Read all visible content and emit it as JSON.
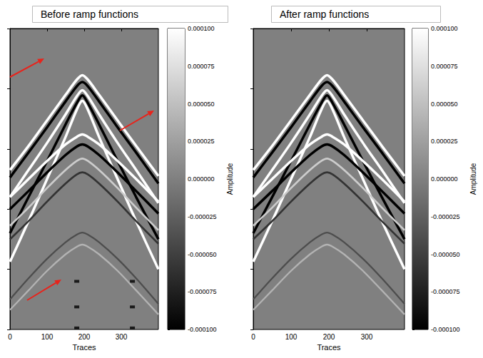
{
  "chart_data": [
    {
      "type": "line",
      "title": "Before ramp functions",
      "xlabel": "Traces",
      "xlim": [
        0,
        400
      ],
      "xticks": [
        0,
        100,
        200,
        300
      ],
      "ylim": [
        0,
        1000
      ],
      "yticks": [
        0,
        200,
        400,
        600,
        800,
        1000
      ],
      "tick_labels": "x",
      "colorbar": {
        "label": "Amplitude",
        "range": [
          -0.0001,
          0.0001
        ],
        "ticks": [
          {
            "value": 0.0001,
            "label": "0.000100"
          },
          {
            "value": 7.5e-05,
            "label": "0.000075"
          },
          {
            "value": 5e-05,
            "label": "0.000050"
          },
          {
            "value": 2.5e-05,
            "label": "0.000025"
          },
          {
            "value": 0,
            "label": "0.000000"
          },
          {
            "value": -2.5e-05,
            "label": "-0.000025"
          },
          {
            "value": -5e-05,
            "label": "-0.000050"
          },
          {
            "value": -7.5e-05,
            "label": "-0.000075"
          },
          {
            "value": -0.0001,
            "label": "-0.000100"
          }
        ]
      },
      "series": [
        {
          "amplitude": 0.0001,
          "x": [
            0,
            50,
            100,
            150,
            180,
            195,
            210,
            240,
            290,
            340,
            400
          ],
          "values": [
            470,
            390,
            305,
            220,
            170,
            155,
            170,
            220,
            305,
            390,
            490
          ]
        },
        {
          "amplitude": -0.0001,
          "x": [
            0,
            50,
            100,
            150,
            180,
            195,
            210,
            240,
            290,
            340,
            400
          ],
          "values": [
            495,
            412,
            328,
            242,
            192,
            178,
            192,
            242,
            328,
            412,
            515
          ]
        },
        {
          "amplitude": 0.0001,
          "x": [
            0,
            50,
            100,
            150,
            180,
            195,
            210,
            240,
            290,
            340,
            400
          ],
          "values": [
            560,
            470,
            380,
            285,
            225,
            205,
            225,
            285,
            380,
            470,
            580
          ]
        },
        {
          "amplitude": -0.0001,
          "x": [
            0,
            50,
            100,
            150,
            180,
            195,
            210,
            240,
            290,
            340,
            400
          ],
          "values": [
            680,
            560,
            440,
            318,
            248,
            222,
            248,
            318,
            440,
            560,
            700
          ]
        },
        {
          "amplitude": 0.0001,
          "x": [
            0,
            50,
            100,
            150,
            180,
            195,
            210,
            240,
            290,
            340,
            400
          ],
          "values": [
            775,
            640,
            500,
            360,
            270,
            240,
            270,
            360,
            500,
            640,
            800
          ]
        },
        {
          "amplitude": 0.0001,
          "x": [
            0,
            50,
            100,
            150,
            180,
            195,
            210,
            240,
            290,
            340,
            400
          ],
          "values": [
            560,
            500,
            440,
            385,
            360,
            352,
            360,
            385,
            440,
            500,
            575
          ]
        },
        {
          "amplitude": -0.0001,
          "x": [
            0,
            50,
            100,
            150,
            180,
            195,
            210,
            240,
            290,
            340,
            400
          ],
          "values": [
            600,
            540,
            478,
            420,
            392,
            385,
            392,
            420,
            478,
            540,
            615
          ]
        },
        {
          "amplitude": 6e-05,
          "x": [
            0,
            50,
            100,
            150,
            180,
            195,
            210,
            240,
            290,
            340,
            400
          ],
          "values": [
            655,
            595,
            530,
            470,
            440,
            432,
            440,
            470,
            530,
            595,
            670
          ]
        },
        {
          "amplitude": -6e-05,
          "x": [
            0,
            50,
            100,
            150,
            180,
            195,
            210,
            240,
            290,
            340,
            400
          ],
          "values": [
            700,
            640,
            575,
            515,
            485,
            478,
            485,
            515,
            575,
            640,
            715
          ]
        },
        {
          "amplitude": -4e-05,
          "x": [
            0,
            50,
            100,
            150,
            180,
            195,
            210,
            240,
            290,
            340,
            400
          ],
          "values": [
            900,
            830,
            765,
            710,
            685,
            678,
            685,
            710,
            765,
            830,
            915
          ]
        },
        {
          "amplitude": 4e-05,
          "x": [
            0,
            50,
            100,
            150,
            180,
            195,
            210,
            240,
            290,
            340,
            400
          ],
          "values": [
            935,
            870,
            805,
            750,
            725,
            718,
            725,
            750,
            805,
            870,
            950
          ]
        },
        {
          "type": "scatter",
          "amplitude": -0.0001,
          "x": [
            180,
            180,
            180,
            330,
            330,
            330
          ],
          "values": [
            840,
            925,
            995,
            840,
            925,
            995
          ]
        }
      ]
    },
    {
      "type": "line",
      "title": "After ramp functions",
      "xlabel": "Traces",
      "xlim": [
        0,
        400
      ],
      "xticks": [
        0,
        100,
        200,
        300
      ],
      "ylim": [
        0,
        1000
      ],
      "yticks": [
        0,
        200,
        400,
        600,
        800,
        1000
      ],
      "tick_labels": "x",
      "colorbar": {
        "label": "Amplitude",
        "range": [
          -0.0001,
          0.0001
        ],
        "ticks": [
          {
            "value": 0.0001,
            "label": "0.000100"
          },
          {
            "value": 7.5e-05,
            "label": "0.000075"
          },
          {
            "value": 5e-05,
            "label": "0.000050"
          },
          {
            "value": 2.5e-05,
            "label": "0.000025"
          },
          {
            "value": 0,
            "label": "0.000000"
          },
          {
            "value": -2.5e-05,
            "label": "-0.000025"
          },
          {
            "value": -5e-05,
            "label": "-0.000050"
          },
          {
            "value": -7.5e-05,
            "label": "-0.000075"
          },
          {
            "value": -0.0001,
            "label": "-0.000100"
          }
        ]
      },
      "series": [
        {
          "amplitude": 0.0001,
          "x": [
            0,
            50,
            100,
            150,
            180,
            195,
            210,
            240,
            290,
            340,
            400
          ],
          "values": [
            470,
            390,
            305,
            220,
            170,
            155,
            170,
            220,
            305,
            390,
            490
          ]
        },
        {
          "amplitude": -0.0001,
          "x": [
            0,
            50,
            100,
            150,
            180,
            195,
            210,
            240,
            290,
            340,
            400
          ],
          "values": [
            495,
            412,
            328,
            242,
            192,
            178,
            192,
            242,
            328,
            412,
            515
          ]
        },
        {
          "amplitude": 0.0001,
          "x": [
            0,
            50,
            100,
            150,
            180,
            195,
            210,
            240,
            290,
            340,
            400
          ],
          "values": [
            560,
            470,
            380,
            285,
            225,
            205,
            225,
            285,
            380,
            470,
            580
          ]
        },
        {
          "amplitude": -0.0001,
          "x": [
            0,
            50,
            100,
            150,
            180,
            195,
            210,
            240,
            290,
            340,
            400
          ],
          "values": [
            680,
            560,
            440,
            318,
            248,
            222,
            248,
            318,
            440,
            560,
            700
          ]
        },
        {
          "amplitude": 0.0001,
          "x": [
            0,
            50,
            100,
            150,
            180,
            195,
            210,
            240,
            290,
            340,
            400
          ],
          "values": [
            775,
            640,
            500,
            360,
            270,
            240,
            270,
            360,
            500,
            640,
            800
          ]
        },
        {
          "amplitude": 0.0001,
          "x": [
            0,
            50,
            100,
            150,
            180,
            195,
            210,
            240,
            290,
            340,
            400
          ],
          "values": [
            560,
            500,
            440,
            385,
            360,
            352,
            360,
            385,
            440,
            500,
            575
          ]
        },
        {
          "amplitude": -0.0001,
          "x": [
            0,
            50,
            100,
            150,
            180,
            195,
            210,
            240,
            290,
            340,
            400
          ],
          "values": [
            600,
            540,
            478,
            420,
            392,
            385,
            392,
            420,
            478,
            540,
            615
          ]
        },
        {
          "amplitude": 6e-05,
          "x": [
            0,
            50,
            100,
            150,
            180,
            195,
            210,
            240,
            290,
            340,
            400
          ],
          "values": [
            655,
            595,
            530,
            470,
            440,
            432,
            440,
            470,
            530,
            595,
            670
          ]
        },
        {
          "amplitude": -6e-05,
          "x": [
            0,
            50,
            100,
            150,
            180,
            195,
            210,
            240,
            290,
            340,
            400
          ],
          "values": [
            700,
            640,
            575,
            515,
            485,
            478,
            485,
            515,
            575,
            640,
            715
          ]
        },
        {
          "amplitude": -4e-05,
          "x": [
            0,
            50,
            100,
            150,
            180,
            195,
            210,
            240,
            290,
            340,
            400
          ],
          "values": [
            900,
            830,
            765,
            710,
            685,
            678,
            685,
            710,
            765,
            830,
            915
          ]
        },
        {
          "amplitude": 4e-05,
          "x": [
            0,
            50,
            100,
            150,
            180,
            195,
            210,
            240,
            290,
            340,
            400
          ],
          "values": [
            935,
            870,
            805,
            750,
            725,
            718,
            725,
            750,
            805,
            870,
            950
          ]
        }
      ]
    }
  ]
}
